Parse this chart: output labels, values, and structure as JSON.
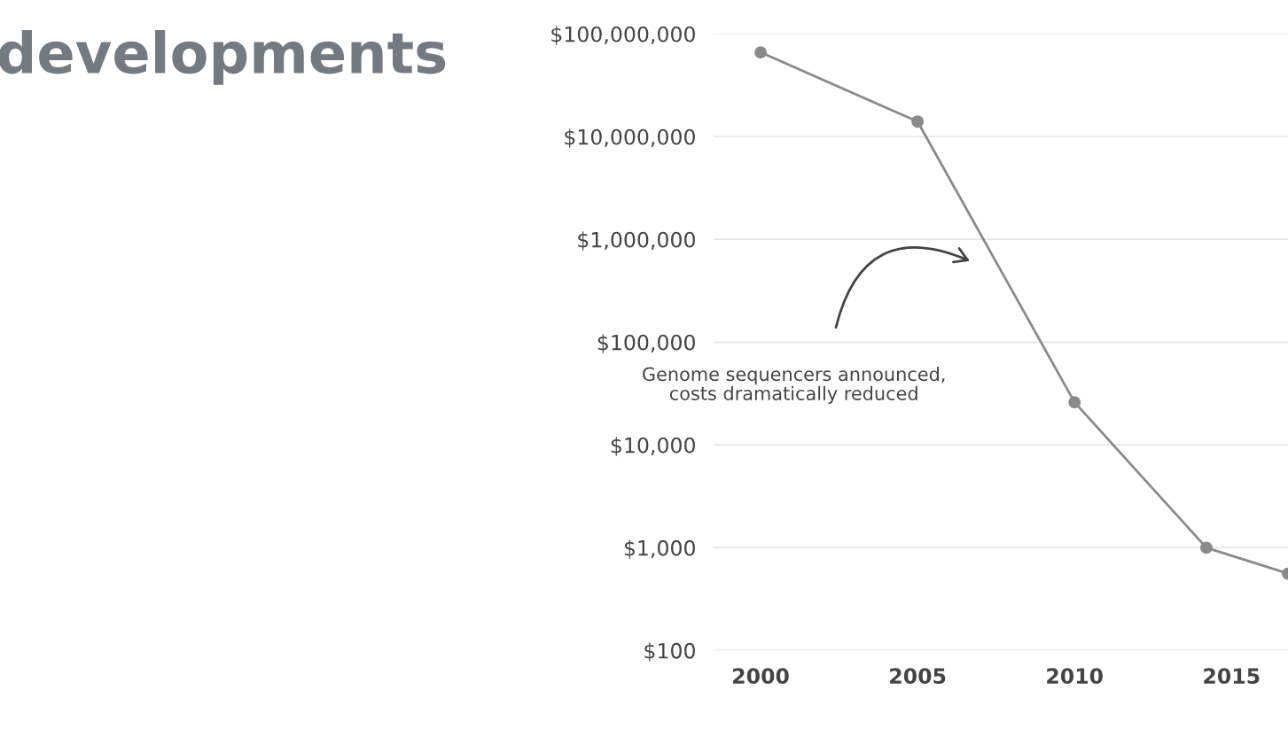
{
  "chart_data": {
    "type": "line",
    "title": "developments",
    "x": [
      2000,
      2005,
      2010,
      2014.2,
      2016.8
    ],
    "series": [
      {
        "color": "#8a8a8a",
        "values": [
          66000000,
          14000000,
          26000,
          1000,
          560
        ]
      }
    ],
    "log": "y",
    "marker": "circle",
    "line_style": "solid",
    "grid": "y",
    "xlim": [
      1998.5,
      2016.8
    ],
    "xticks": [
      2000,
      2005,
      2010,
      2015
    ],
    "ylim": [
      100,
      100000000
    ],
    "yticks": [
      {
        "value": 100,
        "label": "$100"
      },
      {
        "value": 1000,
        "label": "$1,000"
      },
      {
        "value": 10000,
        "label": "$10,000"
      },
      {
        "value": 100000,
        "label": "$100,000"
      },
      {
        "value": 1000000,
        "label": "$1,000,000"
      },
      {
        "value": 10000000,
        "label": "$10,000,000"
      },
      {
        "value": 100000000,
        "label": "$100,000,000"
      }
    ],
    "annotations": [
      "Genome sequencers announced,\ncosts dramatically reduced"
    ]
  }
}
